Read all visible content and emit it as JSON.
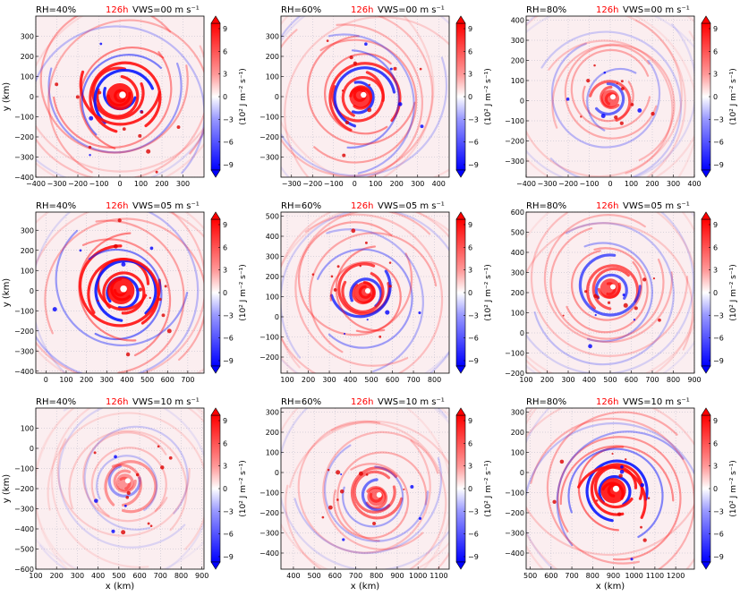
{
  "figure": {
    "time_label": "126h",
    "time_color": "#ff0000",
    "xlabel": "x (km)",
    "ylabel": "y (km)",
    "colorbar_label": "(10² J m⁻² s⁻¹)",
    "colorbar_ticks": [
      "9",
      "6",
      "3",
      "0",
      "−3",
      "−6",
      "−9"
    ],
    "colormap": {
      "negative": "#0000ff",
      "zero": "#ffffff",
      "positive": "#ff0000"
    }
  },
  "chart_data": [
    {
      "type": "heatmap",
      "rh": "RH=40%",
      "vws": "VWS=00 m s⁻¹",
      "xticks": [
        "−400",
        "−300",
        "−200",
        "−100",
        "0",
        "100",
        "200",
        "300"
      ],
      "yticks": [
        "300",
        "200",
        "100",
        "0",
        "−100",
        "−200",
        "−300",
        "−400"
      ],
      "xlim": [
        -400,
        400
      ],
      "ylim": [
        -400,
        400
      ],
      "center": [
        0,
        0
      ],
      "ring_radius": 200,
      "intensity": 1.0,
      "ylabel_shown": true,
      "xlabel_shown": false
    },
    {
      "type": "heatmap",
      "rh": "RH=60%",
      "vws": "VWS=00 m s⁻¹",
      "xticks": [
        "−300",
        "−200",
        "−100",
        "0",
        "100",
        "200",
        "300",
        "400"
      ],
      "yticks": [
        "300",
        "200",
        "100",
        "0",
        "−100",
        "−200",
        "−300"
      ],
      "xlim": [
        -350,
        450
      ],
      "ylim": [
        -400,
        400
      ],
      "center": [
        30,
        0
      ],
      "ring_radius": 170,
      "intensity": 0.9,
      "ylabel_shown": false,
      "xlabel_shown": false
    },
    {
      "type": "heatmap",
      "rh": "RH=80%",
      "vws": "VWS=00 m s⁻¹",
      "xticks": [
        "−400",
        "−300",
        "−200",
        "−100",
        "0",
        "100",
        "200",
        "300",
        "400"
      ],
      "yticks": [
        "400",
        "300",
        "200",
        "100",
        "0",
        "−100",
        "−200",
        "−300"
      ],
      "xlim": [
        -400,
        400
      ],
      "ylim": [
        -380,
        420
      ],
      "center": [
        0,
        10
      ],
      "ring_radius": 110,
      "intensity": 0.7,
      "ylabel_shown": false,
      "xlabel_shown": false
    },
    {
      "type": "heatmap",
      "rh": "RH=40%",
      "vws": "VWS=05 m s⁻¹",
      "xticks": [
        "0",
        "100",
        "200",
        "300",
        "400",
        "500",
        "600",
        "700"
      ],
      "yticks": [
        "300",
        "200",
        "100",
        "0",
        "−100",
        "−200",
        "−300",
        "−400"
      ],
      "xlim": [
        -50,
        780
      ],
      "ylim": [
        -410,
        390
      ],
      "center": [
        370,
        0
      ],
      "ring_radius": 210,
      "intensity": 1.0,
      "ylabel_shown": true,
      "xlabel_shown": false
    },
    {
      "type": "heatmap",
      "rh": "RH=60%",
      "vws": "VWS=05 m s⁻¹",
      "xticks": [
        "100",
        "200",
        "300",
        "400",
        "500",
        "600",
        "700",
        "800"
      ],
      "yticks": [
        "500",
        "400",
        "300",
        "200",
        "100",
        "0",
        "−100",
        "−200"
      ],
      "xlim": [
        70,
        870
      ],
      "ylim": [
        -280,
        520
      ],
      "center": [
        470,
        120
      ],
      "ring_radius": 160,
      "intensity": 0.85,
      "ylabel_shown": false,
      "xlabel_shown": false
    },
    {
      "type": "heatmap",
      "rh": "RH=80%",
      "vws": "VWS=05 m s⁻¹",
      "xticks": [
        "100",
        "200",
        "300",
        "400",
        "500",
        "600",
        "700",
        "800",
        "900"
      ],
      "yticks": [
        "600",
        "500",
        "400",
        "300",
        "200",
        "100",
        "0",
        "−100",
        "−200"
      ],
      "xlim": [
        100,
        900
      ],
      "ylim": [
        -200,
        600
      ],
      "center": [
        500,
        220
      ],
      "ring_radius": 150,
      "intensity": 0.75,
      "ylabel_shown": false,
      "xlabel_shown": false
    },
    {
      "type": "heatmap",
      "rh": "RH=40%",
      "vws": "VWS=10 m s⁻¹",
      "xticks": [
        "100",
        "200",
        "300",
        "400",
        "500",
        "600",
        "700",
        "800",
        "900"
      ],
      "yticks": [
        "100",
        "0",
        "−100",
        "−200",
        "−300",
        "−400",
        "−500",
        "−600"
      ],
      "xlim": [
        100,
        910
      ],
      "ylim": [
        -600,
        200
      ],
      "center": [
        530,
        -170
      ],
      "ring_radius": 130,
      "intensity": 0.45,
      "ylabel_shown": true,
      "xlabel_shown": true
    },
    {
      "type": "heatmap",
      "rh": "RH=60%",
      "vws": "VWS=10 m s⁻¹",
      "xticks": [
        "400",
        "500",
        "600",
        "700",
        "800",
        "900",
        "1000",
        "1100"
      ],
      "yticks": [
        "300",
        "200",
        "100",
        "0",
        "−100",
        "−200",
        "−300",
        "−400"
      ],
      "xlim": [
        340,
        1150
      ],
      "ylim": [
        -480,
        320
      ],
      "center": [
        800,
        -120
      ],
      "ring_radius": 140,
      "intensity": 0.65,
      "ylabel_shown": false,
      "xlabel_shown": true
    },
    {
      "type": "heatmap",
      "rh": "RH=80%",
      "vws": "VWS=10 m s⁻¹",
      "xticks": [
        "500",
        "600",
        "700",
        "800",
        "900",
        "1000",
        "1100",
        "1200"
      ],
      "yticks": [
        "300",
        "200",
        "100",
        "0",
        "−100",
        "−200",
        "−300",
        "−400"
      ],
      "xlim": [
        480,
        1290
      ],
      "ylim": [
        -480,
        320
      ],
      "center": [
        900,
        -90
      ],
      "ring_radius": 190,
      "intensity": 1.0,
      "ylabel_shown": false,
      "xlabel_shown": true
    }
  ]
}
